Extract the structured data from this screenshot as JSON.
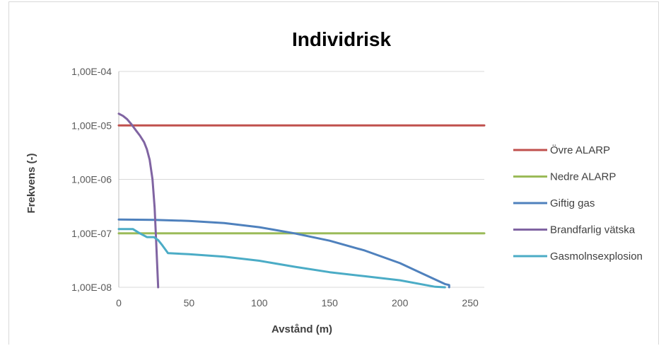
{
  "chart_data": {
    "type": "line",
    "title": "Individrisk",
    "xlabel": "Avstånd (m)",
    "ylabel": "Frekvens (-)",
    "xlim": [
      0,
      260
    ],
    "ylim": [
      1e-08,
      0.0001
    ],
    "yscale": "log",
    "grid": true,
    "legend_position": "right",
    "x_ticks": [
      0,
      50,
      100,
      150,
      200,
      250
    ],
    "x_tick_labels": [
      "0",
      "50",
      "100",
      "150",
      "200",
      "250"
    ],
    "y_ticks": [
      1e-08,
      1e-07,
      1e-06,
      1e-05,
      0.0001
    ],
    "y_tick_labels": [
      "1,00E-08",
      "1,00E-07",
      "1,00E-06",
      "1,00E-05",
      "1,00E-04"
    ],
    "series": [
      {
        "name": "Övre ALARP",
        "color": "#c0504d",
        "x": [
          0,
          260
        ],
        "y": [
          1e-05,
          1e-05
        ]
      },
      {
        "name": "Nedre ALARP",
        "color": "#9bbb59",
        "x": [
          0,
          260
        ],
        "y": [
          1e-07,
          1e-07
        ]
      },
      {
        "name": "Giftig gas",
        "color": "#4f81bd",
        "x": [
          0,
          25,
          50,
          75,
          100,
          125,
          150,
          175,
          200,
          220,
          232,
          235,
          235
        ],
        "y": [
          1.8e-07,
          1.78e-07,
          1.7e-07,
          1.55e-07,
          1.3e-07,
          1e-07,
          7.3e-08,
          4.8e-08,
          2.8e-08,
          1.6e-08,
          1.15e-08,
          1.1e-08,
          1e-08
        ]
      },
      {
        "name": "Brandfarlig vätska",
        "color": "#8064a2",
        "x": [
          0,
          3,
          6,
          9,
          12,
          15,
          18,
          20,
          22,
          24,
          25.5,
          26.5,
          27.5,
          28
        ],
        "y": [
          1.65e-05,
          1.5e-05,
          1.3e-05,
          1.05e-05,
          8.2e-06,
          6.5e-06,
          4.9e-06,
          3.6e-06,
          2.3e-06,
          1e-06,
          3e-07,
          8e-08,
          2e-08,
          1e-08
        ]
      },
      {
        "name": "Gasmolnsexplosion",
        "color": "#4bacc6",
        "x": [
          0,
          10,
          15,
          20,
          25,
          28,
          31,
          35,
          50,
          75,
          100,
          125,
          150,
          175,
          200,
          225,
          232
        ],
        "y": [
          1.2e-07,
          1.2e-07,
          1e-07,
          8.5e-08,
          8.5e-08,
          7.5e-08,
          6e-08,
          4.3e-08,
          4.1e-08,
          3.7e-08,
          3.1e-08,
          2.4e-08,
          1.9e-08,
          1.6e-08,
          1.35e-08,
          1.02e-08,
          1e-08
        ]
      }
    ]
  }
}
